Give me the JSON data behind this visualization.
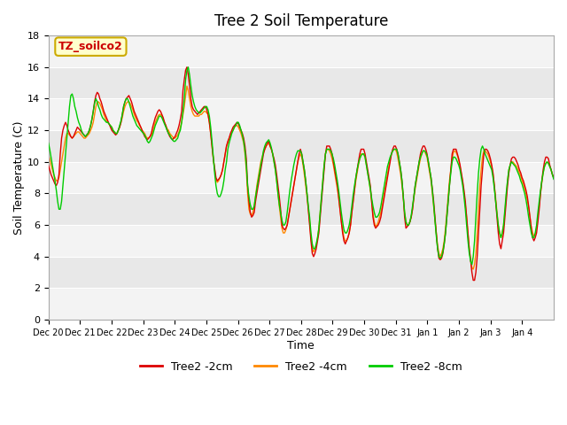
{
  "title": "Tree 2 Soil Temperature",
  "xlabel": "Time",
  "ylabel": "Soil Temperature (C)",
  "ylim": [
    0,
    18
  ],
  "yticks": [
    0,
    2,
    4,
    6,
    8,
    10,
    12,
    14,
    16,
    18
  ],
  "annotation_text": "TZ_soilco2",
  "annotation_color": "#cc0000",
  "annotation_bg": "#ffffcc",
  "annotation_border": "#ccaa00",
  "line_colors": [
    "#dd0000",
    "#ff8800",
    "#00cc00"
  ],
  "line_labels": [
    "Tree2 -2cm",
    "Tree2 -4cm",
    "Tree2 -8cm"
  ],
  "bg_color": "#e8e8e8",
  "plot_bg": "#f0f0f0",
  "x_tick_labels": [
    "Dec 20",
    "Dec 21",
    "Dec 22",
    "Dec 23",
    "Dec 24",
    "Dec 25",
    "Dec 26",
    "Dec 27",
    "Dec 28",
    "Dec 29",
    "Dec 30",
    "Dec 31",
    "Jan 1",
    "Jan 2",
    "Jan 3",
    "Jan 4"
  ],
  "n_days": 16,
  "points_per_day": 24,
  "red_data": [
    9.8,
    9.5,
    9.2,
    9.0,
    8.8,
    8.6,
    8.5,
    8.7,
    9.2,
    10.5,
    11.5,
    12.0,
    12.3,
    12.5,
    12.3,
    12.0,
    11.8,
    11.6,
    11.5,
    11.6,
    11.8,
    12.0,
    12.2,
    12.1,
    12.0,
    11.9,
    11.8,
    11.7,
    11.6,
    11.7,
    11.8,
    12.0,
    12.3,
    12.7,
    13.2,
    13.8,
    14.2,
    14.4,
    14.3,
    14.0,
    13.8,
    13.5,
    13.2,
    13.0,
    12.8,
    12.6,
    12.4,
    12.2,
    12.0,
    11.9,
    11.8,
    11.7,
    11.8,
    12.0,
    12.2,
    12.5,
    13.0,
    13.5,
    13.8,
    14.0,
    14.1,
    14.2,
    14.0,
    13.8,
    13.5,
    13.2,
    13.0,
    12.8,
    12.6,
    12.4,
    12.2,
    12.0,
    11.8,
    11.6,
    11.5,
    11.4,
    11.5,
    11.6,
    11.8,
    12.2,
    12.5,
    12.8,
    13.0,
    13.2,
    13.3,
    13.2,
    13.0,
    12.8,
    12.5,
    12.3,
    12.0,
    11.8,
    11.6,
    11.5,
    11.4,
    11.5,
    11.6,
    11.8,
    12.0,
    12.3,
    12.7,
    13.2,
    14.5,
    15.2,
    15.8,
    16.0,
    15.5,
    14.8,
    14.0,
    13.5,
    13.3,
    13.2,
    13.1,
    13.0,
    13.1,
    13.2,
    13.3,
    13.4,
    13.5,
    13.5,
    13.3,
    13.0,
    12.5,
    11.8,
    11.0,
    10.2,
    9.6,
    9.0,
    8.8,
    8.9,
    9.0,
    9.2,
    9.5,
    10.0,
    10.5,
    11.0,
    11.3,
    11.5,
    11.8,
    12.0,
    12.2,
    12.3,
    12.4,
    12.5,
    12.4,
    12.2,
    12.0,
    11.8,
    11.5,
    11.0,
    10.2,
    8.5,
    7.5,
    6.8,
    6.5,
    6.6,
    6.8,
    7.5,
    8.0,
    8.5,
    9.0,
    9.5,
    10.0,
    10.5,
    10.8,
    11.0,
    11.2,
    11.3,
    11.0,
    10.8,
    10.5,
    10.2,
    9.8,
    9.2,
    8.5,
    7.8,
    7.0,
    6.0,
    5.8,
    5.7,
    5.8,
    6.0,
    6.5,
    7.0,
    7.5,
    8.0,
    8.5,
    9.0,
    9.5,
    10.0,
    10.5,
    10.8,
    10.5,
    10.0,
    9.5,
    8.8,
    8.0,
    7.0,
    6.0,
    5.0,
    4.2,
    4.0,
    4.2,
    4.5,
    5.0,
    5.5,
    6.5,
    7.5,
    8.5,
    9.5,
    10.5,
    11.0,
    11.0,
    11.0,
    10.8,
    10.5,
    10.0,
    9.5,
    9.0,
    8.5,
    7.8,
    7.0,
    6.2,
    5.5,
    5.0,
    4.8,
    5.0,
    5.2,
    5.5,
    6.0,
    6.8,
    7.5,
    8.2,
    9.0,
    9.5,
    10.0,
    10.5,
    10.8,
    10.8,
    10.8,
    10.5,
    10.0,
    9.5,
    9.0,
    8.5,
    7.5,
    6.5,
    6.0,
    5.8,
    5.9,
    6.0,
    6.2,
    6.5,
    7.0,
    7.5,
    8.0,
    8.5,
    9.0,
    9.5,
    10.0,
    10.5,
    10.8,
    11.0,
    11.0,
    10.8,
    10.5,
    10.0,
    9.5,
    8.8,
    7.8,
    6.5,
    5.8,
    5.9,
    6.0,
    6.2,
    6.5,
    7.0,
    7.8,
    8.5,
    9.0,
    9.5,
    10.0,
    10.5,
    10.8,
    11.0,
    11.0,
    10.8,
    10.5,
    10.0,
    9.5,
    9.0,
    8.3,
    7.5,
    6.5,
    5.5,
    4.5,
    3.9,
    3.8,
    3.9,
    4.2,
    4.8,
    5.5,
    6.5,
    7.5,
    8.5,
    9.5,
    10.5,
    10.8,
    10.8,
    10.8,
    10.5,
    10.2,
    9.8,
    9.3,
    8.8,
    8.2,
    7.5,
    6.5,
    5.5,
    4.5,
    3.8,
    3.0,
    2.5,
    2.5,
    3.0,
    4.0,
    5.5,
    7.0,
    8.5,
    9.5,
    10.5,
    10.8,
    10.8,
    10.7,
    10.5,
    10.2,
    9.8,
    9.3,
    8.5,
    7.5,
    6.5,
    5.5,
    4.8,
    4.5,
    5.0,
    5.5,
    6.5,
    7.5,
    8.5,
    9.3,
    9.8,
    10.2,
    10.3,
    10.3,
    10.2,
    10.0,
    9.8,
    9.5,
    9.3,
    9.0,
    8.8,
    8.5,
    8.2,
    7.8,
    7.2,
    6.5,
    5.8,
    5.2,
    5.0,
    5.2,
    5.5,
    6.2,
    7.0,
    8.0,
    8.8,
    9.5,
    10.0,
    10.3,
    10.3,
    10.2,
    9.8,
    9.5,
    9.2,
    9.0
  ],
  "orange_data": [
    10.5,
    10.2,
    9.8,
    9.5,
    9.2,
    9.0,
    8.8,
    8.8,
    9.0,
    9.5,
    10.0,
    10.5,
    11.0,
    11.5,
    11.8,
    11.8,
    11.7,
    11.6,
    11.5,
    11.6,
    11.7,
    11.8,
    11.9,
    11.9,
    11.8,
    11.7,
    11.6,
    11.5,
    11.5,
    11.6,
    11.7,
    11.8,
    12.0,
    12.2,
    12.5,
    13.0,
    13.5,
    13.8,
    13.8,
    13.7,
    13.5,
    13.3,
    13.0,
    12.8,
    12.6,
    12.5,
    12.4,
    12.3,
    12.2,
    12.0,
    11.9,
    11.8,
    11.8,
    12.0,
    12.2,
    12.5,
    12.8,
    13.2,
    13.5,
    13.7,
    13.8,
    13.8,
    13.7,
    13.5,
    13.3,
    13.0,
    12.8,
    12.6,
    12.5,
    12.3,
    12.2,
    12.0,
    11.9,
    11.8,
    11.6,
    11.5,
    11.5,
    11.6,
    11.7,
    11.9,
    12.2,
    12.5,
    12.7,
    12.9,
    13.0,
    13.0,
    12.9,
    12.7,
    12.5,
    12.3,
    12.1,
    12.0,
    11.8,
    11.7,
    11.6,
    11.5,
    11.5,
    11.6,
    11.7,
    11.9,
    12.2,
    12.5,
    13.0,
    13.5,
    14.2,
    14.8,
    14.5,
    14.0,
    13.5,
    13.2,
    13.0,
    12.9,
    12.9,
    12.9,
    12.9,
    13.0,
    13.0,
    13.1,
    13.2,
    13.2,
    13.1,
    13.0,
    12.5,
    11.8,
    11.0,
    10.2,
    9.5,
    8.9,
    8.7,
    8.8,
    9.0,
    9.2,
    9.5,
    10.0,
    10.5,
    11.0,
    11.2,
    11.5,
    11.7,
    11.9,
    12.0,
    12.2,
    12.3,
    12.3,
    12.2,
    12.0,
    11.8,
    11.5,
    11.2,
    10.5,
    9.5,
    8.0,
    7.0,
    6.7,
    6.6,
    6.8,
    7.2,
    7.8,
    8.5,
    9.0,
    9.5,
    10.0,
    10.3,
    10.6,
    10.8,
    11.0,
    11.1,
    11.2,
    11.0,
    10.8,
    10.5,
    10.0,
    9.5,
    8.8,
    8.0,
    7.2,
    6.5,
    5.8,
    5.5,
    5.5,
    5.7,
    6.0,
    6.5,
    7.0,
    7.5,
    8.0,
    8.5,
    9.0,
    9.5,
    10.0,
    10.3,
    10.5,
    10.3,
    9.8,
    9.2,
    8.5,
    7.8,
    7.0,
    6.2,
    5.2,
    4.5,
    4.3,
    4.5,
    4.7,
    5.2,
    5.8,
    6.8,
    7.8,
    8.8,
    9.8,
    10.5,
    10.8,
    10.8,
    10.7,
    10.5,
    10.2,
    9.8,
    9.3,
    8.8,
    8.3,
    7.7,
    7.0,
    6.3,
    5.7,
    5.2,
    5.0,
    5.0,
    5.2,
    5.5,
    6.0,
    6.8,
    7.5,
    8.2,
    8.8,
    9.3,
    9.8,
    10.2,
    10.5,
    10.5,
    10.5,
    10.3,
    9.8,
    9.3,
    8.8,
    8.2,
    7.5,
    6.7,
    6.2,
    5.9,
    6.0,
    6.2,
    6.5,
    6.8,
    7.2,
    7.7,
    8.2,
    8.7,
    9.2,
    9.7,
    10.1,
    10.5,
    10.7,
    10.8,
    10.8,
    10.6,
    10.2,
    9.7,
    9.2,
    8.5,
    7.7,
    6.8,
    6.2,
    6.0,
    6.0,
    6.2,
    6.5,
    7.0,
    7.7,
    8.3,
    8.8,
    9.3,
    9.8,
    10.2,
    10.5,
    10.7,
    10.7,
    10.5,
    10.3,
    9.8,
    9.3,
    8.8,
    8.0,
    7.2,
    6.3,
    5.5,
    4.7,
    4.2,
    4.0,
    4.2,
    4.5,
    5.0,
    5.8,
    6.8,
    7.8,
    8.8,
    9.5,
    10.2,
    10.6,
    10.7,
    10.6,
    10.4,
    10.1,
    9.7,
    9.2,
    8.7,
    8.0,
    7.3,
    6.5,
    5.5,
    4.5,
    3.8,
    3.3,
    3.2,
    3.5,
    4.2,
    5.5,
    7.0,
    8.5,
    9.5,
    10.3,
    10.7,
    10.7,
    10.6,
    10.5,
    10.3,
    10.0,
    9.7,
    9.2,
    8.5,
    7.7,
    6.8,
    6.0,
    5.5,
    5.2,
    5.5,
    6.0,
    6.8,
    7.8,
    8.8,
    9.5,
    9.8,
    10.0,
    10.0,
    9.9,
    9.8,
    9.7,
    9.5,
    9.3,
    9.1,
    8.8,
    8.6,
    8.3,
    8.0,
    7.6,
    7.1,
    6.5,
    5.9,
    5.5,
    5.3,
    5.4,
    5.8,
    6.5,
    7.2,
    8.0,
    8.7,
    9.3,
    9.7,
    9.9,
    10.0,
    9.9,
    9.7,
    9.5,
    9.2,
    9.0
  ],
  "green_data": [
    11.2,
    10.8,
    10.3,
    9.8,
    9.3,
    8.8,
    8.2,
    7.5,
    7.0,
    7.0,
    7.5,
    8.5,
    9.5,
    10.5,
    11.5,
    12.5,
    13.5,
    14.2,
    14.3,
    14.0,
    13.5,
    13.2,
    12.8,
    12.5,
    12.3,
    12.0,
    11.8,
    11.7,
    11.6,
    11.7,
    11.8,
    12.0,
    12.3,
    12.7,
    13.2,
    13.7,
    14.0,
    13.8,
    13.5,
    13.3,
    13.0,
    12.8,
    12.7,
    12.6,
    12.5,
    12.5,
    12.4,
    12.3,
    12.2,
    12.0,
    11.9,
    11.8,
    11.8,
    12.0,
    12.3,
    12.6,
    13.0,
    13.5,
    13.8,
    14.0,
    14.0,
    13.8,
    13.5,
    13.2,
    12.9,
    12.7,
    12.5,
    12.3,
    12.2,
    12.1,
    12.0,
    11.9,
    11.8,
    11.7,
    11.5,
    11.3,
    11.2,
    11.3,
    11.5,
    11.7,
    12.0,
    12.3,
    12.5,
    12.7,
    12.9,
    12.9,
    12.8,
    12.6,
    12.4,
    12.2,
    12.0,
    11.8,
    11.7,
    11.5,
    11.4,
    11.3,
    11.3,
    11.4,
    11.5,
    11.8,
    12.0,
    12.5,
    13.2,
    14.0,
    15.2,
    15.8,
    16.0,
    15.5,
    14.8,
    14.2,
    13.8,
    13.5,
    13.3,
    13.2,
    13.1,
    13.1,
    13.2,
    13.3,
    13.4,
    13.5,
    13.5,
    13.3,
    12.9,
    12.2,
    11.3,
    10.3,
    9.3,
    8.5,
    8.0,
    7.8,
    7.8,
    8.0,
    8.3,
    8.8,
    9.5,
    10.0,
    10.8,
    11.2,
    11.5,
    11.8,
    12.0,
    12.2,
    12.3,
    12.5,
    12.5,
    12.3,
    12.0,
    11.7,
    11.3,
    10.7,
    9.8,
    8.5,
    7.8,
    7.3,
    7.0,
    7.0,
    7.2,
    7.8,
    8.3,
    8.8,
    9.3,
    9.8,
    10.2,
    10.7,
    11.0,
    11.2,
    11.3,
    11.4,
    11.2,
    10.9,
    10.5,
    10.0,
    9.5,
    8.8,
    8.0,
    7.3,
    6.8,
    6.3,
    6.0,
    6.0,
    6.2,
    6.8,
    7.5,
    8.2,
    8.8,
    9.3,
    9.8,
    10.2,
    10.5,
    10.7,
    10.7,
    10.7,
    10.5,
    10.0,
    9.5,
    8.8,
    8.0,
    7.2,
    6.5,
    5.5,
    4.8,
    4.5,
    4.5,
    4.8,
    5.2,
    5.8,
    6.8,
    7.8,
    8.8,
    9.8,
    10.5,
    10.8,
    10.8,
    10.8,
    10.7,
    10.5,
    10.2,
    9.8,
    9.3,
    8.8,
    8.2,
    7.5,
    6.8,
    6.2,
    5.7,
    5.5,
    5.5,
    5.7,
    6.0,
    6.5,
    7.2,
    7.9,
    8.5,
    9.0,
    9.5,
    9.9,
    10.2,
    10.4,
    10.5,
    10.5,
    10.3,
    9.8,
    9.3,
    8.8,
    8.3,
    7.7,
    7.2,
    6.8,
    6.5,
    6.5,
    6.6,
    6.8,
    7.2,
    7.7,
    8.2,
    8.7,
    9.2,
    9.7,
    10.0,
    10.3,
    10.5,
    10.7,
    10.8,
    10.8,
    10.8,
    10.5,
    10.0,
    9.5,
    8.8,
    7.8,
    6.8,
    6.2,
    6.0,
    6.0,
    6.2,
    6.6,
    7.2,
    7.8,
    8.5,
    9.0,
    9.5,
    10.0,
    10.3,
    10.5,
    10.7,
    10.7,
    10.6,
    10.4,
    10.0,
    9.5,
    9.0,
    8.2,
    7.3,
    6.3,
    5.3,
    4.5,
    4.0,
    3.9,
    4.0,
    4.3,
    4.8,
    5.5,
    6.5,
    7.5,
    8.5,
    9.3,
    10.0,
    10.3,
    10.3,
    10.2,
    10.0,
    9.8,
    9.5,
    9.0,
    8.5,
    7.8,
    7.0,
    6.0,
    5.0,
    4.2,
    3.7,
    3.5,
    4.0,
    5.0,
    6.5,
    8.0,
    9.3,
    10.2,
    10.8,
    11.0,
    10.8,
    10.5,
    10.3,
    10.1,
    9.9,
    9.7,
    9.5,
    9.0,
    8.3,
    7.5,
    6.7,
    6.0,
    5.5,
    5.2,
    5.5,
    6.0,
    7.0,
    8.0,
    8.8,
    9.5,
    9.8,
    10.0,
    9.9,
    9.8,
    9.7,
    9.5,
    9.3,
    9.1,
    8.8,
    8.6,
    8.3,
    8.0,
    7.6,
    7.1,
    6.5,
    6.0,
    5.5,
    5.2,
    5.2,
    5.5,
    6.0,
    6.8,
    7.5,
    8.2,
    8.8,
    9.3,
    9.7,
    9.9,
    10.0,
    9.9,
    9.7,
    9.5,
    9.2,
    8.9
  ]
}
